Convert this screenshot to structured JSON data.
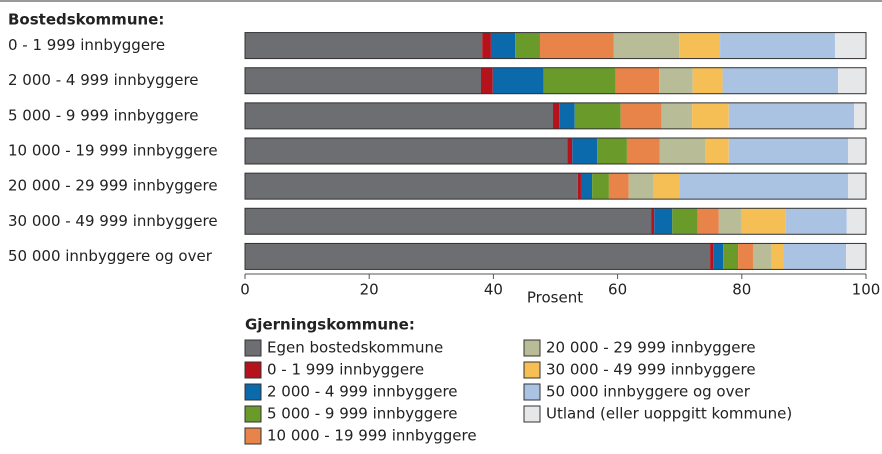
{
  "chart_data": {
    "type": "bar",
    "orientation": "horizontal",
    "stacked": true,
    "y_axis_title": "Bostedskommune:",
    "xlabel": "Prosent",
    "legend_title": "Gjerningskommune:",
    "categories": [
      "0  -  1 999 innbyggere",
      "2 000  -  4 999 innbyggere",
      "5 000  -  9 999 innbyggere",
      "10 000 - 19 999 innbyggere",
      "20 000 - 29 999 innbyggere",
      "30 000 - 49 999 innbyggere",
      "50 000 innbyggere og over"
    ],
    "xlim": [
      0,
      100
    ],
    "xticks": [
      0,
      20,
      40,
      60,
      80,
      100
    ],
    "series": [
      {
        "name": "Egen bostedskommune",
        "color": "#6d6e71",
        "values": [
          38.2,
          38.0,
          49.6,
          51.9,
          53.6,
          65.4,
          74.9
        ]
      },
      {
        "name": "0 - 1 999 innbyggere",
        "color": "#b5121b",
        "values": [
          1.4,
          1.9,
          1.0,
          0.8,
          0.5,
          0.5,
          0.5
        ]
      },
      {
        "name": "2 000 - 4 999 innbyggere",
        "color": "#0a6aab",
        "values": [
          3.9,
          8.2,
          2.5,
          4.0,
          1.8,
          2.9,
          1.6
        ]
      },
      {
        "name": "5 000 - 9 999 innbyggere",
        "color": "#6a9a2a",
        "values": [
          4.0,
          11.6,
          7.4,
          4.8,
          2.7,
          4.1,
          2.4
        ]
      },
      {
        "name": "10 000 - 19 999 innbyggere",
        "color": "#e8834a",
        "values": [
          11.9,
          7.0,
          6.6,
          5.3,
          3.2,
          3.4,
          2.4
        ]
      },
      {
        "name": "20 000 - 29 999 innbyggere",
        "color": "#b8bd98",
        "values": [
          10.5,
          5.4,
          4.9,
          7.4,
          3.9,
          3.7,
          2.9
        ]
      },
      {
        "name": "30 000 - 49 999 innbyggere",
        "color": "#f5bf55",
        "values": [
          6.6,
          4.8,
          5.9,
          3.7,
          4.2,
          7.1,
          2.1
        ]
      },
      {
        "name": "50 000 innbyggere og over",
        "color": "#aac3e3",
        "values": [
          18.5,
          18.6,
          20.2,
          19.2,
          27.2,
          9.8,
          10.0
        ]
      },
      {
        "name": "Utland (eller uoppgitt kommune)",
        "color": "#e6e7e8",
        "values": [
          5.0,
          4.5,
          1.9,
          2.9,
          2.9,
          3.1,
          3.2
        ]
      }
    ]
  }
}
